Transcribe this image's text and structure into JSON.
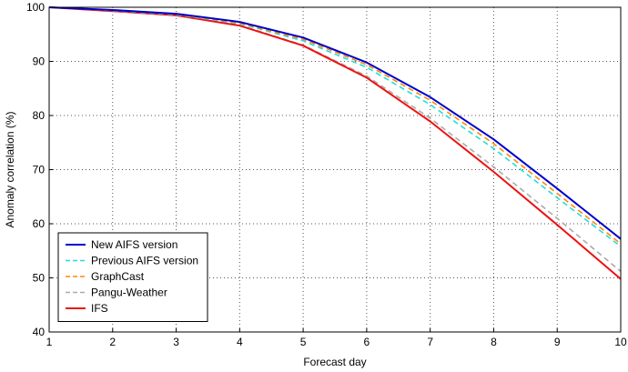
{
  "chart_data": {
    "type": "line",
    "xlabel": "Forecast day",
    "ylabel": "Anomaly correlation (%)",
    "xlim": [
      1,
      10
    ],
    "ylim": [
      40,
      100
    ],
    "xticks": [
      1,
      2,
      3,
      4,
      5,
      6,
      7,
      8,
      9,
      10
    ],
    "yticks": [
      40,
      50,
      60,
      70,
      80,
      90,
      100
    ],
    "grid": true,
    "legend_position": "bottom-left",
    "x": [
      1,
      2,
      3,
      4,
      5,
      6,
      7,
      8,
      9,
      10
    ],
    "series": [
      {
        "name": "New AIFS version",
        "color": "#0000cc",
        "dash": "solid",
        "values": [
          100,
          99.5,
          98.8,
          97.3,
          94.4,
          89.8,
          83.4,
          75.6,
          66.5,
          57.2
        ]
      },
      {
        "name": "Previous AIFS version",
        "color": "#22dddd",
        "dash": "dashed",
        "values": [
          100,
          99.4,
          98.6,
          97.0,
          93.8,
          88.9,
          82.0,
          73.9,
          64.8,
          55.8
        ]
      },
      {
        "name": "GraphCast",
        "color": "#ff8800",
        "dash": "dashed",
        "values": [
          100,
          99.5,
          98.7,
          97.1,
          94.1,
          89.4,
          82.8,
          74.8,
          65.6,
          56.3
        ]
      },
      {
        "name": "Pangu-Weather",
        "color": "#aaaaaa",
        "dash": "dashed",
        "values": [
          100,
          99.3,
          98.5,
          96.7,
          93.0,
          87.3,
          79.5,
          70.5,
          61.0,
          51.2
        ]
      },
      {
        "name": "IFS",
        "color": "#ee1111",
        "dash": "solid",
        "values": [
          100,
          99.3,
          98.5,
          96.6,
          92.9,
          87.0,
          78.9,
          69.6,
          59.8,
          49.8
        ]
      }
    ]
  }
}
